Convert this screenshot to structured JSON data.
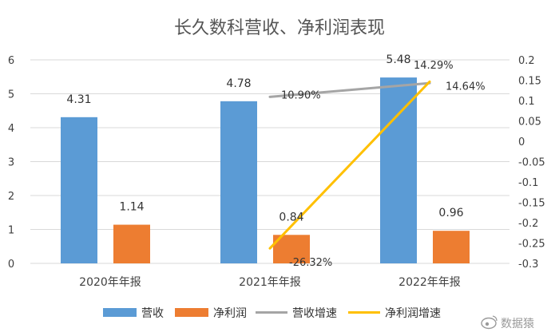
{
  "chart_data": {
    "type": "bar",
    "title": "长久数科营收、净利润表现",
    "categories": [
      "2020年年报",
      "2021年年报",
      "2022年年报"
    ],
    "series": [
      {
        "name": "营收",
        "type": "bar",
        "axis": "left",
        "color": "#5B9BD5",
        "values": [
          4.31,
          4.78,
          5.48
        ],
        "labels": [
          "4.31",
          "4.78",
          "5.48"
        ]
      },
      {
        "name": "净利润",
        "type": "bar",
        "axis": "left",
        "color": "#ED7D31",
        "values": [
          1.14,
          0.84,
          0.96
        ],
        "labels": [
          "1.14",
          "0.84",
          "0.96"
        ]
      },
      {
        "name": "营收增速",
        "type": "line",
        "axis": "right",
        "color": "#A5A5A5",
        "values": [
          null,
          0.109,
          0.1429
        ],
        "labels": [
          "",
          "10.90%",
          "14.29%"
        ]
      },
      {
        "name": "净利润增速",
        "type": "line",
        "axis": "right",
        "color": "#FFC000",
        "values": [
          null,
          -0.2632,
          0.1464
        ],
        "labels": [
          "",
          "-26.32%",
          "14.64%"
        ]
      }
    ],
    "y_left": {
      "min": 0,
      "max": 6,
      "ticks": [
        "0",
        "1",
        "2",
        "3",
        "4",
        "5",
        "6"
      ]
    },
    "y_right": {
      "min": -0.3,
      "max": 0.2,
      "ticks": [
        "-0.3",
        "-0.25",
        "-0.2",
        "-0.15",
        "-0.1",
        "-0.05",
        "0",
        "0.05",
        "0.1",
        "0.15",
        "0.2"
      ]
    },
    "grid": true,
    "legend": "bottom"
  },
  "watermark": "数据猿"
}
